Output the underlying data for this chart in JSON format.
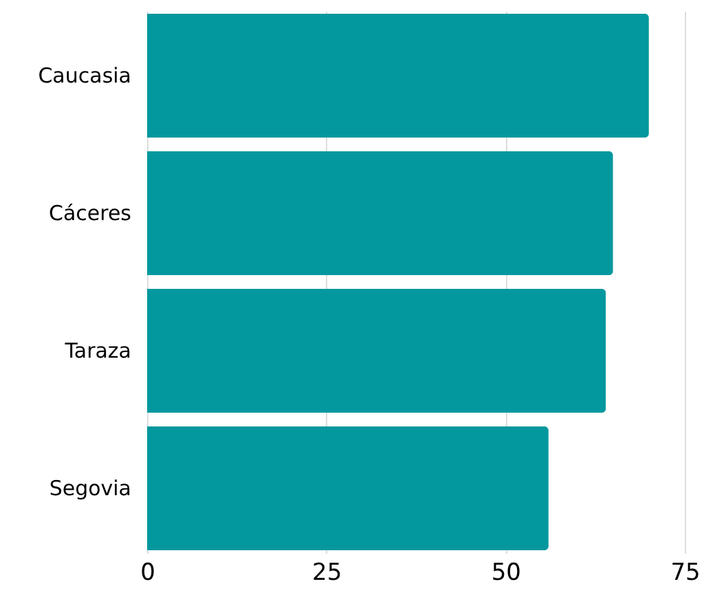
{
  "chart_data": {
    "type": "bar",
    "orientation": "horizontal",
    "categories": [
      "Caucasia",
      "Cáceres",
      "Taraza",
      "Segovia"
    ],
    "values": [
      70,
      65,
      64,
      56
    ],
    "color": "#03989e",
    "xlim": [
      0,
      75
    ],
    "xticks": [
      0,
      25,
      50,
      75
    ],
    "grid": "x"
  }
}
